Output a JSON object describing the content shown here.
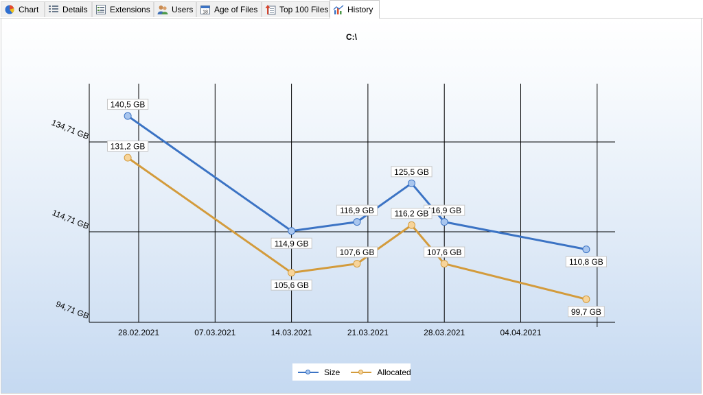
{
  "tabs": [
    {
      "label": "Chart",
      "icon": "pie-chart-icon"
    },
    {
      "label": "Details",
      "icon": "details-list-icon"
    },
    {
      "label": "Extensions",
      "icon": "extensions-icon"
    },
    {
      "label": "Users",
      "icon": "users-icon"
    },
    {
      "label": "Age of Files",
      "icon": "calendar-icon"
    },
    {
      "label": "Top 100 Files",
      "icon": "top-files-icon"
    },
    {
      "label": "History",
      "icon": "history-chart-icon",
      "active": true
    }
  ],
  "chart_data": {
    "type": "line",
    "title": "C:\\",
    "x": [
      "2021-02-27",
      "2021-03-14",
      "2021-03-20",
      "2021-03-25",
      "2021-03-28",
      "2021-04-10"
    ],
    "xticks": [
      "28.02.2021",
      "07.03.2021",
      "14.03.2021",
      "21.03.2021",
      "28.03.2021",
      "04.04.2021"
    ],
    "yticks": [
      "134,71 GB",
      "114,71 GB",
      "94,71 GB"
    ],
    "ylim": [
      94.71,
      134.71
    ],
    "series": [
      {
        "name": "Size",
        "color": "#3b73c4",
        "marker_color": "#a9c6ee",
        "values": [
          140.5,
          114.9,
          116.9,
          125.5,
          116.9,
          110.8
        ],
        "labels": [
          "140,5 GB",
          "114,9 GB",
          "116,9 GB",
          "125,5 GB",
          "116,9 GB",
          "110,8 GB"
        ]
      },
      {
        "name": "Allocated",
        "color": "#d39b3c",
        "marker_color": "#f7d49a",
        "values": [
          131.2,
          105.6,
          107.6,
          116.2,
          107.6,
          99.7
        ],
        "labels": [
          "131,2 GB",
          "105,6 GB",
          "107,6 GB",
          "116,2 GB",
          "107,6 GB",
          "99,7 GB"
        ]
      }
    ],
    "grid": true,
    "legend": "bottom-center"
  }
}
